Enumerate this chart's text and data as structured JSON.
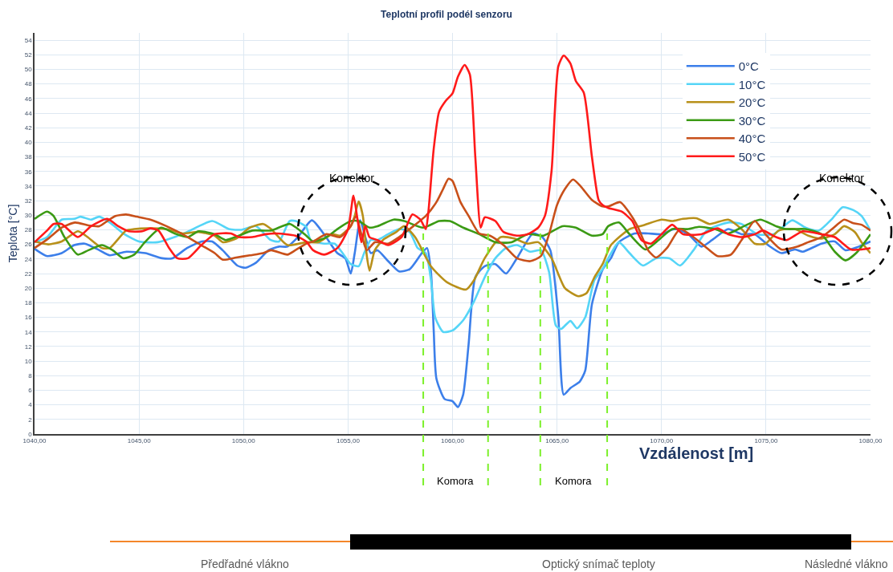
{
  "chart_data": {
    "type": "line",
    "title": "Teplotní profil podél senzoru",
    "xlabel": "Vzdálenost [m]",
    "ylabel": "Teplota [°C]",
    "xlim": [
      1040,
      1080
    ],
    "xticks": [
      {
        "value": 1040,
        "label": "1040,00"
      },
      {
        "value": 1045,
        "label": "1045,00"
      },
      {
        "value": 1050,
        "label": "1050,00"
      },
      {
        "value": 1055,
        "label": "1055,00"
      },
      {
        "value": 1060,
        "label": "1060,00"
      },
      {
        "value": 1065,
        "label": "1065,00"
      },
      {
        "value": 1070,
        "label": "1070,00"
      },
      {
        "value": 1075,
        "label": "1075,00"
      },
      {
        "value": 1080,
        "label": "1080,00"
      }
    ],
    "ylim": [
      0,
      55
    ],
    "yticks": [
      0,
      2,
      4,
      6,
      8,
      10,
      12,
      14,
      16,
      18,
      20,
      22,
      24,
      26,
      28,
      30,
      32,
      34,
      36,
      38,
      40,
      42,
      44,
      46,
      48,
      50,
      52,
      54
    ],
    "grid": true,
    "legend": "top right",
    "line_style": "solid",
    "marker": "none",
    "series": [
      {
        "name": "0°C",
        "color": "#3c7fea",
        "x": [
          1040,
          1040.6,
          1041.3,
          1041.9,
          1042.4,
          1043.1,
          1043.6,
          1044.4,
          1045.3,
          1046.1,
          1046.6,
          1047.3,
          1048.0,
          1048.5,
          1049.0,
          1049.7,
          1050.1,
          1050.6,
          1051.2,
          1051.7,
          1052.1,
          1052.6,
          1053.27,
          1053.85,
          1054.49,
          1054.87,
          1055.13,
          1055.32,
          1055.58,
          1055.83,
          1056.09,
          1056.41,
          1056.92,
          1057.44,
          1057.95,
          1058.53,
          1058.78,
          1058.97,
          1059.1,
          1059.23,
          1059.62,
          1060.0,
          1060.26,
          1060.51,
          1060.77,
          1061.09,
          1061.54,
          1062.05,
          1062.56,
          1063.08,
          1063.85,
          1064.29,
          1064.68,
          1065.06,
          1065.32,
          1065.64,
          1066.09,
          1066.35,
          1066.67,
          1067.19,
          1067.58,
          1067.96,
          1068.72,
          1069.36,
          1070.0,
          1070.64,
          1071.28,
          1071.91,
          1072.42,
          1073.19,
          1073.83,
          1074.46,
          1075.1,
          1075.74,
          1076.38,
          1076.76,
          1077.65,
          1078.29,
          1078.8,
          1079.44,
          1080.0
        ],
        "values": [
          25.4,
          24.4,
          24.8,
          25.9,
          26.1,
          25.2,
          24.5,
          25.0,
          24.8,
          24.1,
          24.1,
          25.5,
          26.4,
          26.4,
          25.2,
          23.1,
          22.8,
          23.5,
          25.2,
          25.7,
          25.7,
          27.0,
          29.3,
          27.4,
          24.8,
          24.1,
          22.0,
          24.8,
          29.3,
          27.0,
          24.8,
          25.2,
          23.7,
          22.3,
          22.6,
          24.8,
          25.5,
          22.2,
          14.2,
          7.6,
          4.8,
          4.5,
          3.7,
          5.4,
          12.3,
          21.5,
          23.0,
          23.3,
          22.0,
          24.1,
          27.5,
          27.0,
          25.2,
          16.1,
          5.4,
          6.3,
          7.2,
          8.7,
          17.8,
          22.6,
          24.1,
          26.3,
          27.5,
          27.5,
          27.4,
          28.1,
          27.4,
          25.7,
          26.6,
          28.1,
          27.4,
          27.4,
          25.9,
          24.8,
          25.3,
          25.0,
          26.1,
          26.4,
          25.2,
          25.7,
          26.4
        ]
      },
      {
        "name": "10°C",
        "color": "#55d5f7",
        "x": [
          1040,
          1040.6,
          1041.3,
          1041.9,
          1042.2,
          1042.7,
          1043.1,
          1043.6,
          1044.3,
          1045.0,
          1045.9,
          1046.7,
          1047.3,
          1048.5,
          1049.3,
          1049.9,
          1050.6,
          1051.3,
          1051.7,
          1052.2,
          1052.5,
          1053.0,
          1053.21,
          1053.85,
          1054.36,
          1054.74,
          1055.13,
          1055.51,
          1055.77,
          1056.09,
          1056.41,
          1056.92,
          1057.44,
          1057.95,
          1058.33,
          1058.72,
          1058.97,
          1059.17,
          1059.55,
          1060.0,
          1060.51,
          1061.03,
          1061.54,
          1062.05,
          1062.56,
          1063.08,
          1063.72,
          1064.23,
          1064.62,
          1064.94,
          1065.19,
          1065.64,
          1065.96,
          1066.35,
          1066.79,
          1067.18,
          1067.45,
          1067.96,
          1068.47,
          1069.11,
          1069.74,
          1070.38,
          1070.89,
          1071.53,
          1072.17,
          1073.19,
          1073.83,
          1074.59,
          1075.36,
          1076.25,
          1076.89,
          1077.53,
          1078.16,
          1078.67,
          1079.18,
          1079.57,
          1080.0
        ],
        "values": [
          26.3,
          27.0,
          29.4,
          29.5,
          29.8,
          29.4,
          29.8,
          29.0,
          27.4,
          26.4,
          26.3,
          27.0,
          27.7,
          29.2,
          28.1,
          28.0,
          28.5,
          26.6,
          26.4,
          29.2,
          29.2,
          28.4,
          26.6,
          26.1,
          26.1,
          24.8,
          23.3,
          23.0,
          24.8,
          26.6,
          26.6,
          27.4,
          28.1,
          27.7,
          25.5,
          24.8,
          21.1,
          16.0,
          14.0,
          14.2,
          15.6,
          18.2,
          21.5,
          24.1,
          25.5,
          25.9,
          25.0,
          25.2,
          22.2,
          14.9,
          14.4,
          15.5,
          14.5,
          16.0,
          21.1,
          22.6,
          24.1,
          26.3,
          24.8,
          23.1,
          24.1,
          24.1,
          23.1,
          25.2,
          27.9,
          29.0,
          28.8,
          27.4,
          27.4,
          29.3,
          28.3,
          27.9,
          29.5,
          31.1,
          30.7,
          29.9,
          27.9
        ]
      },
      {
        "name": "20°C",
        "color": "#b8901a",
        "x": [
          1040,
          1040.66,
          1041.3,
          1042.07,
          1042.45,
          1043.23,
          1043.6,
          1044.38,
          1044.77,
          1045.41,
          1046.31,
          1047.08,
          1047.85,
          1048.62,
          1049.01,
          1049.65,
          1050.3,
          1050.94,
          1051.32,
          1052.1,
          1053.0,
          1053.59,
          1054.23,
          1054.62,
          1055.13,
          1055.32,
          1055.51,
          1055.71,
          1055.9,
          1056.03,
          1056.28,
          1056.67,
          1057.31,
          1057.69,
          1058.21,
          1058.97,
          1059.74,
          1060.64,
          1061.03,
          1061.54,
          1062.31,
          1062.95,
          1063.59,
          1064.1,
          1064.74,
          1065.38,
          1066.03,
          1066.41,
          1066.79,
          1067.18,
          1067.58,
          1068.47,
          1069.11,
          1070.0,
          1070.51,
          1071.02,
          1071.66,
          1072.3,
          1073.19,
          1073.83,
          1074.46,
          1074.97,
          1075.61,
          1076.38,
          1077.02,
          1077.65,
          1078.29,
          1078.74,
          1079.25,
          1079.57,
          1080.0
        ],
        "values": [
          26.4,
          26.0,
          26.4,
          27.8,
          27.2,
          25.5,
          25.5,
          27.9,
          28.1,
          28.2,
          28.1,
          27.5,
          27.7,
          27.2,
          26.3,
          26.8,
          28.3,
          28.8,
          28.1,
          25.9,
          26.3,
          26.3,
          27.4,
          27.2,
          28.5,
          29.9,
          31.9,
          29.9,
          24.4,
          22.4,
          25.2,
          26.6,
          27.7,
          28.5,
          27.0,
          23.0,
          20.8,
          19.8,
          21.1,
          24.1,
          27.0,
          26.8,
          26.1,
          26.3,
          24.1,
          20.0,
          18.9,
          19.3,
          21.5,
          23.3,
          25.9,
          28.1,
          28.6,
          29.4,
          29.2,
          29.5,
          29.6,
          28.8,
          29.4,
          28.1,
          26.1,
          26.1,
          27.9,
          28.1,
          27.2,
          26.8,
          27.4,
          28.5,
          27.7,
          26.3,
          24.8
        ]
      },
      {
        "name": "30°C",
        "color": "#3b9a14",
        "x": [
          1040,
          1040.6,
          1040.91,
          1041.43,
          1042.07,
          1042.58,
          1043.23,
          1043.74,
          1044.25,
          1044.77,
          1045.28,
          1046.05,
          1046.7,
          1047.34,
          1047.85,
          1048.62,
          1049.14,
          1049.78,
          1050.42,
          1051.32,
          1052.22,
          1053.0,
          1053.33,
          1053.97,
          1054.49,
          1055.13,
          1055.51,
          1056.03,
          1056.41,
          1057.18,
          1057.69,
          1058.59,
          1059.36,
          1059.87,
          1060.51,
          1061.28,
          1062.05,
          1062.82,
          1063.59,
          1064.36,
          1065.26,
          1065.9,
          1066.67,
          1067.18,
          1067.45,
          1067.96,
          1068.47,
          1069.23,
          1069.74,
          1070.51,
          1071.28,
          1071.79,
          1072.55,
          1073.19,
          1073.95,
          1074.72,
          1075.48,
          1075.99,
          1076.89,
          1077.65,
          1078.29,
          1078.8,
          1079.31,
          1080.0
        ],
        "values": [
          29.5,
          30.5,
          29.9,
          27.0,
          24.6,
          25.2,
          25.9,
          25.2,
          24.1,
          24.6,
          26.3,
          28.3,
          27.5,
          27.0,
          27.8,
          27.4,
          26.6,
          27.2,
          27.9,
          27.9,
          28.8,
          27.2,
          26.4,
          27.0,
          28.1,
          29.2,
          29.2,
          28.3,
          28.5,
          29.4,
          29.2,
          28.3,
          29.2,
          29.2,
          28.3,
          27.4,
          26.3,
          26.3,
          27.4,
          27.2,
          28.5,
          28.3,
          27.2,
          27.4,
          28.5,
          29.0,
          27.4,
          25.3,
          26.3,
          28.1,
          28.1,
          28.4,
          28.1,
          27.5,
          28.5,
          29.4,
          28.5,
          28.1,
          28.1,
          27.4,
          25.0,
          23.8,
          24.8,
          27.4
        ]
      },
      {
        "name": "40°C",
        "color": "#c8501a",
        "x": [
          1040,
          1040.66,
          1041.3,
          1041.94,
          1042.58,
          1043.1,
          1043.48,
          1043.87,
          1044.38,
          1044.9,
          1045.54,
          1046.31,
          1047.08,
          1047.85,
          1048.62,
          1049.01,
          1049.65,
          1050.3,
          1050.94,
          1051.32,
          1052.1,
          1052.48,
          1053.0,
          1053.33,
          1053.97,
          1054.62,
          1055.13,
          1055.38,
          1055.64,
          1055.9,
          1056.28,
          1056.92,
          1057.44,
          1057.95,
          1058.72,
          1059.23,
          1059.55,
          1059.81,
          1060.0,
          1060.38,
          1060.77,
          1061.28,
          1061.79,
          1062.44,
          1063.08,
          1063.72,
          1064.23,
          1064.62,
          1065.0,
          1065.38,
          1065.77,
          1066.15,
          1066.67,
          1067.18,
          1067.45,
          1068.02,
          1068.47,
          1068.85,
          1069.36,
          1069.74,
          1070.26,
          1070.89,
          1071.53,
          1072.17,
          1072.68,
          1073.32,
          1073.83,
          1074.46,
          1074.97,
          1075.74,
          1076.51,
          1077.02,
          1077.65,
          1078.16,
          1078.74,
          1079.18,
          1079.57,
          1080.0
        ],
        "values": [
          25.5,
          26.8,
          28.3,
          29.0,
          28.6,
          28.5,
          29.2,
          29.9,
          30.1,
          29.8,
          29.4,
          28.5,
          27.4,
          26.1,
          24.8,
          23.9,
          24.2,
          24.5,
          24.8,
          25.2,
          24.6,
          25.2,
          26.1,
          26.4,
          27.4,
          27.0,
          28.5,
          29.9,
          27.4,
          25.2,
          26.3,
          26.1,
          27.0,
          28.1,
          29.9,
          31.8,
          33.6,
          35.0,
          34.7,
          31.8,
          29.9,
          27.5,
          27.2,
          25.9,
          24.1,
          23.7,
          24.4,
          27.4,
          31.4,
          33.6,
          34.9,
          33.9,
          32.1,
          31.2,
          31.2,
          31.8,
          30.3,
          28.5,
          25.2,
          24.2,
          25.5,
          28.1,
          27.0,
          25.5,
          24.4,
          24.6,
          26.6,
          29.2,
          27.4,
          25.3,
          25.7,
          26.3,
          27.0,
          28.1,
          29.4,
          28.9,
          28.7,
          27.9
        ]
      },
      {
        "name": "50°C",
        "color": "#ff1a1a",
        "x": [
          1040,
          1040.6,
          1040.91,
          1041.3,
          1042.07,
          1042.71,
          1043.48,
          1044.0,
          1044.51,
          1045.15,
          1045.54,
          1045.93,
          1046.44,
          1046.83,
          1047.34,
          1047.98,
          1048.62,
          1049.4,
          1049.78,
          1050.42,
          1051.07,
          1051.58,
          1052.48,
          1053.0,
          1053.33,
          1053.85,
          1054.49,
          1055.0,
          1055.26,
          1055.45,
          1055.64,
          1055.83,
          1056.03,
          1056.41,
          1056.92,
          1057.56,
          1058.08,
          1058.46,
          1058.72,
          1058.85,
          1059.1,
          1059.36,
          1059.68,
          1060.0,
          1060.26,
          1060.58,
          1060.83,
          1061.09,
          1061.35,
          1061.54,
          1062.05,
          1062.44,
          1063.08,
          1063.59,
          1064.1,
          1064.42,
          1064.74,
          1065.06,
          1065.32,
          1065.64,
          1065.9,
          1066.28,
          1066.67,
          1066.99,
          1067.18,
          1067.45,
          1068.09,
          1068.6,
          1069.04,
          1069.49,
          1070.0,
          1070.51,
          1071.02,
          1071.91,
          1072.68,
          1073.19,
          1073.83,
          1074.46,
          1074.85,
          1075.48,
          1075.99,
          1076.76,
          1077.65,
          1078.29,
          1079.06,
          1079.57,
          1080.0
        ],
        "values": [
          26.3,
          27.9,
          28.8,
          28.8,
          27.0,
          28.5,
          29.5,
          28.5,
          27.8,
          27.8,
          28.2,
          27.9,
          25.5,
          24.1,
          24.1,
          25.9,
          27.4,
          27.5,
          27.0,
          27.0,
          27.4,
          27.5,
          27.2,
          26.4,
          25.2,
          24.6,
          25.5,
          28.1,
          32.7,
          29.5,
          26.3,
          28.5,
          27.0,
          26.6,
          25.9,
          27.0,
          30.1,
          29.4,
          28.1,
          30.6,
          39.1,
          44.2,
          45.7,
          46.7,
          49.0,
          50.6,
          49.3,
          38.0,
          28.3,
          29.7,
          29.2,
          27.7,
          27.2,
          27.4,
          28.3,
          29.9,
          36.1,
          50.4,
          51.9,
          50.8,
          48.4,
          46.8,
          38.0,
          32.1,
          31.4,
          31.0,
          30.5,
          29.2,
          26.6,
          26.1,
          27.4,
          28.7,
          27.4,
          27.4,
          28.2,
          27.4,
          27.0,
          27.4,
          27.9,
          27.0,
          26.6,
          27.8,
          27.4,
          27.0,
          25.3,
          25.3,
          25.5
        ]
      }
    ],
    "ref_lines": [
      {
        "axis": "x",
        "value": 1058.6,
        "color": "#7cf02a",
        "line_style": "dashed"
      },
      {
        "axis": "x",
        "value": 1061.7,
        "color": "#7cf02a",
        "line_style": "dashed"
      },
      {
        "axis": "x",
        "value": 1064.2,
        "color": "#7cf02a",
        "line_style": "dashed"
      },
      {
        "axis": "x",
        "value": 1067.4,
        "color": "#7cf02a",
        "line_style": "dashed"
      }
    ],
    "annotations": [
      "Konektor",
      "Konektor",
      "Komora",
      "Komora",
      "Předřadné vlákno",
      "Optický snímač teploty",
      "Následné vlákno"
    ]
  }
}
